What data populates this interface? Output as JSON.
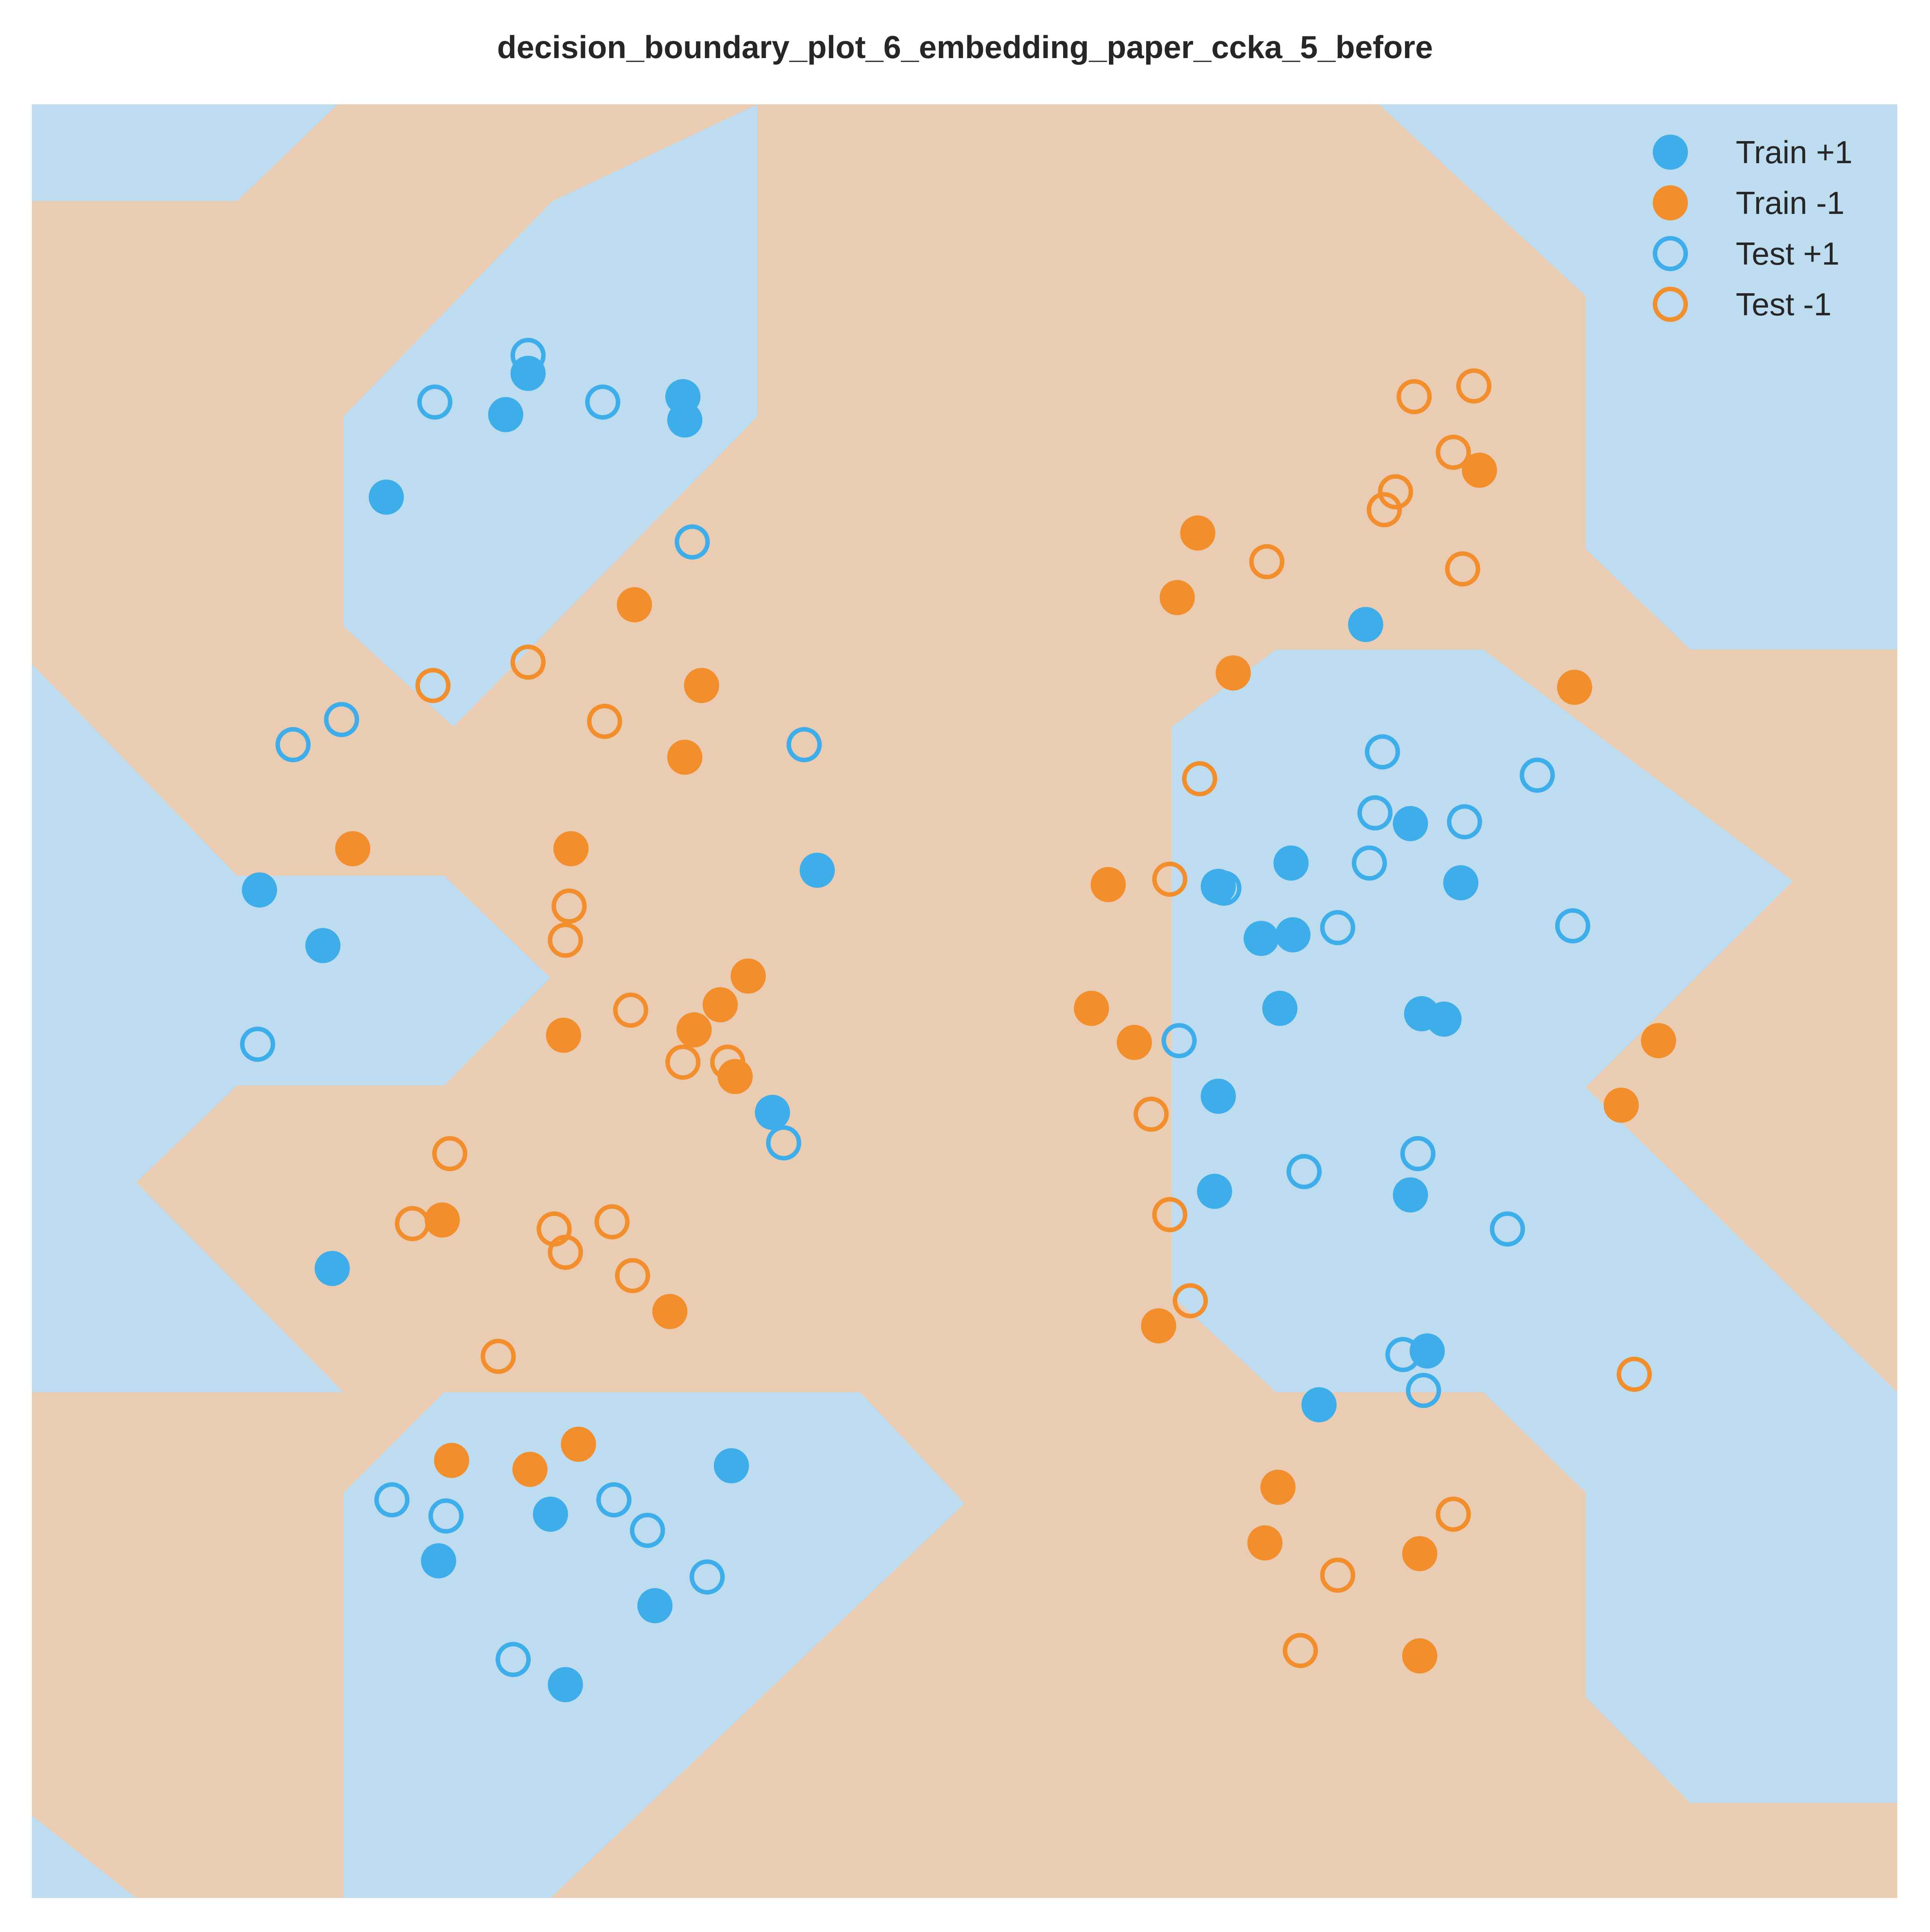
{
  "chart_data": {
    "type": "scatter",
    "title": "decision_boundary_plot_6_embedding_paper_ccka_5_before",
    "xlabel": "",
    "ylabel": "",
    "xlim": [
      0,
      1
    ],
    "ylim": [
      0,
      1
    ],
    "grid": false,
    "axes_visible": false,
    "legend_position": "top-right",
    "colors": {
      "positive": "#3daee9",
      "negative": "#f28e2b",
      "region_positive": "#bddcef",
      "region_negative": "#e9ccb2"
    },
    "decision_regions": {
      "background_class": "-1",
      "positive_class": "+1",
      "positive_regions": [
        [
          [
            0.0,
            1.0
          ],
          [
            0.164,
            1.0
          ],
          [
            0.11,
            0.946
          ],
          [
            0.0,
            0.946
          ]
        ],
        [
          [
            0.167,
            0.826
          ],
          [
            0.279,
            0.946
          ],
          [
            0.389,
            1.0
          ],
          [
            0.389,
            0.826
          ],
          [
            0.226,
            0.653
          ],
          [
            0.167,
            0.709
          ]
        ],
        [
          [
            0.0,
            0.688
          ],
          [
            0.11,
            0.57
          ],
          [
            0.221,
            0.57
          ],
          [
            0.278,
            0.513
          ],
          [
            0.221,
            0.453
          ],
          [
            0.11,
            0.453
          ],
          [
            0.056,
            0.399
          ],
          [
            0.167,
            0.282
          ],
          [
            0.0,
            0.282
          ]
        ],
        [
          [
            0.0,
            0.046
          ],
          [
            0.056,
            0.0
          ],
          [
            0.0,
            0.0
          ]
        ],
        [
          [
            0.167,
            0.0
          ],
          [
            0.278,
            0.0
          ],
          [
            0.5,
            0.22
          ],
          [
            0.444,
            0.282
          ],
          [
            0.221,
            0.282
          ],
          [
            0.167,
            0.226
          ]
        ],
        [
          [
            0.722,
            1.0
          ],
          [
            0.833,
            0.893
          ],
          [
            0.833,
            0.752
          ],
          [
            0.889,
            0.696
          ],
          [
            1.0,
            0.696
          ],
          [
            1.0,
            1.0
          ]
        ],
        [
          [
            0.611,
            0.653
          ],
          [
            0.611,
            0.336
          ],
          [
            0.667,
            0.282
          ],
          [
            0.778,
            0.282
          ],
          [
            0.833,
            0.226
          ],
          [
            0.833,
            0.112
          ],
          [
            0.889,
            0.053
          ],
          [
            1.0,
            0.053
          ],
          [
            1.0,
            0.282
          ],
          [
            0.833,
            0.452
          ],
          [
            0.944,
            0.567
          ],
          [
            0.778,
            0.696
          ],
          [
            0.667,
            0.696
          ]
        ]
      ]
    },
    "legend": [
      "Train +1",
      "Train -1",
      "Test +1",
      "Test -1"
    ],
    "series": [
      {
        "name": "Train +1",
        "style": "filled",
        "class": "+1",
        "points": [
          [
            0.266,
            0.85
          ],
          [
            0.254,
            0.827
          ],
          [
            0.349,
            0.837
          ],
          [
            0.35,
            0.824
          ],
          [
            0.19,
            0.781
          ],
          [
            0.122,
            0.562
          ],
          [
            0.156,
            0.531
          ],
          [
            0.421,
            0.573
          ],
          [
            0.397,
            0.438
          ],
          [
            0.161,
            0.351
          ],
          [
            0.375,
            0.241
          ],
          [
            0.278,
            0.214
          ],
          [
            0.218,
            0.188
          ],
          [
            0.334,
            0.163
          ],
          [
            0.286,
            0.119
          ],
          [
            0.715,
            0.71
          ],
          [
            0.675,
            0.577
          ],
          [
            0.739,
            0.599
          ],
          [
            0.766,
            0.566
          ],
          [
            0.636,
            0.564
          ],
          [
            0.659,
            0.535
          ],
          [
            0.676,
            0.537
          ],
          [
            0.669,
            0.496
          ],
          [
            0.745,
            0.493
          ],
          [
            0.757,
            0.49
          ],
          [
            0.636,
            0.447
          ],
          [
            0.634,
            0.394
          ],
          [
            0.739,
            0.392
          ],
          [
            0.748,
            0.305
          ],
          [
            0.69,
            0.275
          ]
        ]
      },
      {
        "name": "Train -1",
        "style": "filled",
        "class": "-1",
        "points": [
          [
            0.323,
            0.721
          ],
          [
            0.359,
            0.676
          ],
          [
            0.35,
            0.636
          ],
          [
            0.172,
            0.585
          ],
          [
            0.289,
            0.585
          ],
          [
            0.625,
            0.761
          ],
          [
            0.614,
            0.725
          ],
          [
            0.644,
            0.683
          ],
          [
            0.776,
            0.796
          ],
          [
            0.827,
            0.675
          ],
          [
            0.384,
            0.514
          ],
          [
            0.369,
            0.498
          ],
          [
            0.355,
            0.484
          ],
          [
            0.285,
            0.481
          ],
          [
            0.377,
            0.458
          ],
          [
            0.577,
            0.565
          ],
          [
            0.568,
            0.496
          ],
          [
            0.591,
            0.477
          ],
          [
            0.22,
            0.378
          ],
          [
            0.342,
            0.327
          ],
          [
            0.293,
            0.253
          ],
          [
            0.225,
            0.244
          ],
          [
            0.267,
            0.239
          ],
          [
            0.872,
            0.478
          ],
          [
            0.852,
            0.442
          ],
          [
            0.604,
            0.319
          ],
          [
            0.668,
            0.229
          ],
          [
            0.661,
            0.198
          ],
          [
            0.744,
            0.192
          ],
          [
            0.744,
            0.135
          ]
        ]
      },
      {
        "name": "Test +1",
        "style": "hollow",
        "class": "+1",
        "points": [
          [
            0.266,
            0.86
          ],
          [
            0.216,
            0.834
          ],
          [
            0.306,
            0.834
          ],
          [
            0.354,
            0.756
          ],
          [
            0.166,
            0.657
          ],
          [
            0.14,
            0.643
          ],
          [
            0.414,
            0.643
          ],
          [
            0.121,
            0.476
          ],
          [
            0.403,
            0.421
          ],
          [
            0.724,
            0.639
          ],
          [
            0.72,
            0.605
          ],
          [
            0.768,
            0.6
          ],
          [
            0.807,
            0.626
          ],
          [
            0.717,
            0.577
          ],
          [
            0.639,
            0.563
          ],
          [
            0.7,
            0.541
          ],
          [
            0.826,
            0.542
          ],
          [
            0.615,
            0.478
          ],
          [
            0.682,
            0.405
          ],
          [
            0.743,
            0.415
          ],
          [
            0.791,
            0.373
          ],
          [
            0.735,
            0.303
          ],
          [
            0.746,
            0.283
          ],
          [
            0.193,
            0.222
          ],
          [
            0.222,
            0.213
          ],
          [
            0.312,
            0.222
          ],
          [
            0.33,
            0.205
          ],
          [
            0.362,
            0.179
          ],
          [
            0.258,
            0.133
          ]
        ]
      },
      {
        "name": "Test -1",
        "style": "hollow",
        "class": "-1",
        "points": [
          [
            0.773,
            0.843
          ],
          [
            0.741,
            0.837
          ],
          [
            0.762,
            0.806
          ],
          [
            0.731,
            0.784
          ],
          [
            0.725,
            0.774
          ],
          [
            0.662,
            0.745
          ],
          [
            0.767,
            0.741
          ],
          [
            0.266,
            0.689
          ],
          [
            0.215,
            0.676
          ],
          [
            0.307,
            0.656
          ],
          [
            0.626,
            0.624
          ],
          [
            0.61,
            0.568
          ],
          [
            0.288,
            0.553
          ],
          [
            0.286,
            0.534
          ],
          [
            0.321,
            0.495
          ],
          [
            0.349,
            0.466
          ],
          [
            0.373,
            0.466
          ],
          [
            0.6,
            0.437
          ],
          [
            0.224,
            0.415
          ],
          [
            0.204,
            0.376
          ],
          [
            0.28,
            0.373
          ],
          [
            0.311,
            0.377
          ],
          [
            0.286,
            0.36
          ],
          [
            0.322,
            0.347
          ],
          [
            0.61,
            0.381
          ],
          [
            0.621,
            0.333
          ],
          [
            0.25,
            0.302
          ],
          [
            0.859,
            0.292
          ],
          [
            0.762,
            0.214
          ],
          [
            0.7,
            0.18
          ],
          [
            0.68,
            0.138
          ]
        ]
      }
    ]
  }
}
